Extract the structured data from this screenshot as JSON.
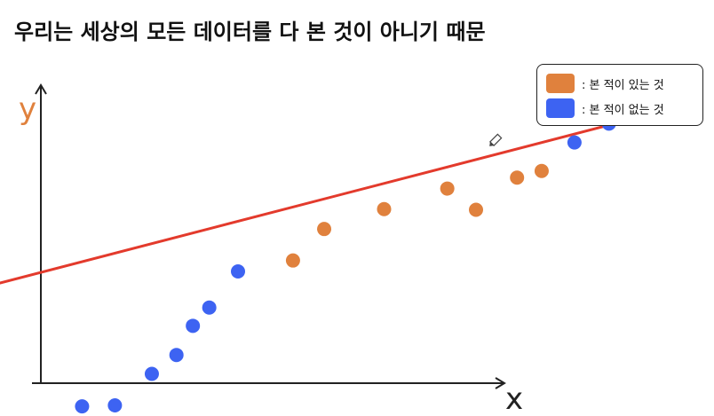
{
  "title": "우리는 세상의 모든 데이터를 다 본 것이 아니기 때문",
  "chart_data": {
    "type": "scatter",
    "xlabel": "x",
    "ylabel": "y",
    "grid": false,
    "legend_position": "top-right",
    "series": [
      {
        "name": "본 적이 있는 것",
        "color": "#e0813d",
        "points": [
          [
            4.07,
            3.55
          ],
          [
            4.45,
            4.5
          ],
          [
            5.18,
            5.1
          ],
          [
            5.95,
            5.72
          ],
          [
            6.3,
            5.08
          ],
          [
            6.8,
            6.05
          ],
          [
            7.1,
            6.25
          ]
        ]
      },
      {
        "name": "본 적이 없는 것",
        "color": "#3d63f2",
        "points": [
          [
            1.5,
            -0.85
          ],
          [
            1.9,
            -0.82
          ],
          [
            2.35,
            0.13
          ],
          [
            2.65,
            0.7
          ],
          [
            2.85,
            1.58
          ],
          [
            3.05,
            2.13
          ],
          [
            3.4,
            3.22
          ],
          [
            7.5,
            7.11
          ],
          [
            7.92,
            7.68
          ],
          [
            8.17,
            8.02
          ],
          [
            8.44,
            8.87
          ]
        ]
      }
    ],
    "trend_line": {
      "color": "#e33a2c",
      "from": [
        0.0,
        2.55
      ],
      "to": [
        8.8,
        8.2
      ]
    },
    "xlim": [
      0.5,
      9.2
    ],
    "ylim": [
      -0.9,
      9.0
    ],
    "legend": [
      {
        "label": ": 본 적이 있는 것",
        "color": "#e0813d"
      },
      {
        "label": ": 본 적이 없는 것",
        "color": "#3d63f2"
      }
    ],
    "icons": [
      "pencil-icon"
    ]
  }
}
